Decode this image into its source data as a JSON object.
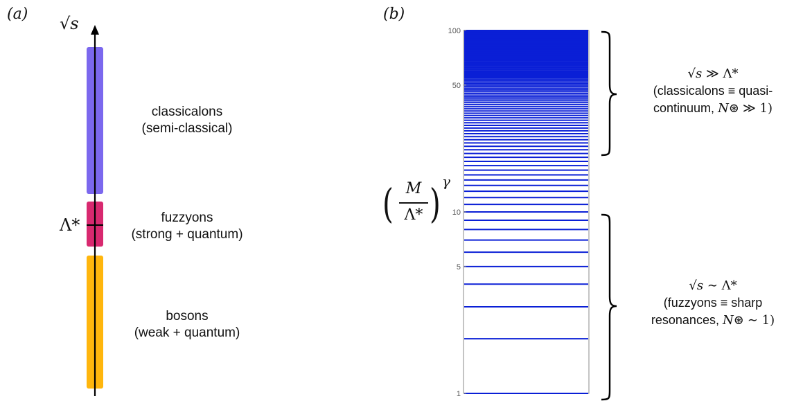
{
  "panel_a": {
    "label": "(a)",
    "axis_symbol": "√s",
    "scale_symbol": "Λ*",
    "regions": [
      {
        "id": "classicalons",
        "line1": "classicalons",
        "line2": "(semi-classical)",
        "color": "#7b68ee"
      },
      {
        "id": "fuzzyons",
        "line1": "fuzzyons",
        "line2": "(strong + quantum)",
        "color": "#d8296f"
      },
      {
        "id": "bosons",
        "line1": "bosons",
        "line2": "(weak + quantum)",
        "color": "#ffb60d"
      }
    ]
  },
  "panel_b": {
    "label": "(b)",
    "ylabel_numerator": "M",
    "ylabel_denominator": "Λ*",
    "ylabel_exponent": "γ",
    "upper_annotation": {
      "line1_lhs": "√s",
      "line1_rel": "≫",
      "line1_rhs": "Λ*",
      "line2": "(classicalons ≡ quasi-",
      "line3_text": "continuum,",
      "line3_symbol": "N⊛",
      "line3_rel": "≫ 1)"
    },
    "lower_annotation": {
      "line1_lhs": "√s",
      "line1_rel": "∼",
      "line1_rhs": "Λ*",
      "line2": "(fuzzyons ≡ sharp",
      "line3_text": "resonances,",
      "line3_symbol": "N⊛",
      "line3_rel": "∼ 1)"
    },
    "line_color": "#0a1fd6"
  },
  "chart_data": {
    "type": "spectrum",
    "scale": "log",
    "ylim": [
      1,
      100
    ],
    "ytick_labels": [
      "100",
      "50",
      "10",
      "5",
      "1"
    ],
    "yticks": [
      100,
      50,
      10,
      5,
      1
    ],
    "levels": [
      1,
      2,
      3,
      4,
      5,
      6,
      7,
      8,
      9,
      10,
      11,
      12,
      13,
      14,
      15,
      16,
      17,
      18,
      19,
      20,
      21,
      22,
      23,
      24,
      25,
      26,
      27,
      28,
      29,
      30,
      31,
      32,
      33,
      34,
      35,
      36,
      37,
      38,
      39,
      40,
      41,
      42,
      43,
      44,
      45,
      46,
      47,
      48,
      49,
      50,
      51,
      52,
      53,
      54,
      55,
      56,
      57,
      58,
      59,
      60,
      61,
      62,
      63,
      64,
      65,
      66,
      67,
      68,
      69,
      70,
      71,
      72,
      73,
      74,
      75,
      76,
      77,
      78,
      79,
      80,
      81,
      82,
      83,
      84,
      85,
      86,
      87,
      88,
      89,
      90,
      91,
      92,
      93,
      94,
      95,
      96,
      97,
      98,
      99,
      100
    ]
  }
}
